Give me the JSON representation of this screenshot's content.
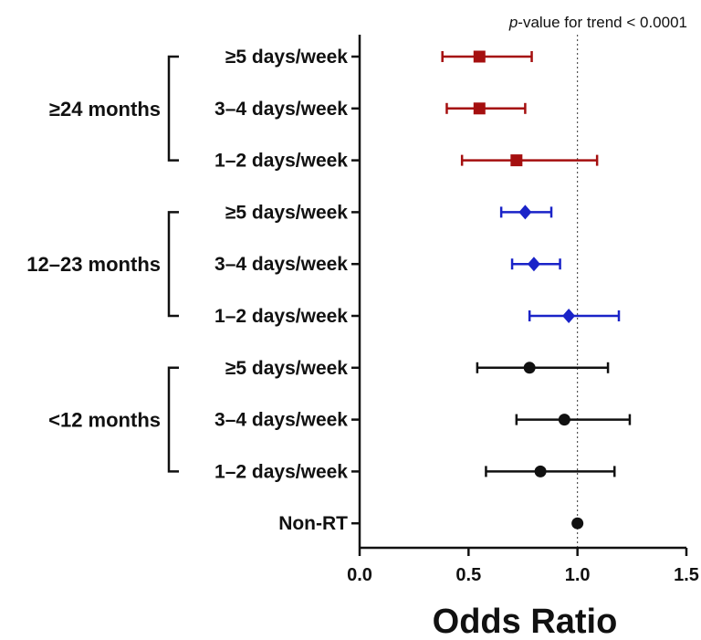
{
  "chart_data": {
    "type": "forest",
    "annotation": {
      "p_label": "p",
      "text": "-value for trend < 0.0001"
    },
    "xlabel": "Odds Ratio",
    "xlim": [
      0,
      1.5
    ],
    "xticks": [
      {
        "value": 0.0,
        "label": "0.0"
      },
      {
        "value": 0.5,
        "label": "0.5"
      },
      {
        "value": 1.0,
        "label": "1.0"
      },
      {
        "value": 1.5,
        "label": "1.5"
      }
    ],
    "reference_line": 1.0,
    "colors": {
      "red": "#a50f0f",
      "blue": "#1a23c8",
      "black": "#111111"
    },
    "groups": [
      {
        "label": "≥24 months",
        "color": "red",
        "marker": "square",
        "rows": [
          0,
          1,
          2
        ]
      },
      {
        "label": "12–23 months",
        "color": "blue",
        "marker": "diamond",
        "rows": [
          3,
          4,
          5
        ]
      },
      {
        "label": "<12 months",
        "color": "black",
        "marker": "circle",
        "rows": [
          6,
          7,
          8
        ]
      }
    ],
    "rows": [
      {
        "label": "≥5 days/week",
        "or": 0.55,
        "lower": 0.38,
        "upper": 0.79,
        "color": "red",
        "marker": "square"
      },
      {
        "label": "3–4 days/week",
        "or": 0.55,
        "lower": 0.4,
        "upper": 0.76,
        "color": "red",
        "marker": "square"
      },
      {
        "label": "1–2 days/week",
        "or": 0.72,
        "lower": 0.47,
        "upper": 1.09,
        "color": "red",
        "marker": "square"
      },
      {
        "label": "≥5 days/week",
        "or": 0.76,
        "lower": 0.65,
        "upper": 0.88,
        "color": "blue",
        "marker": "diamond"
      },
      {
        "label": "3–4 days/week",
        "or": 0.8,
        "lower": 0.7,
        "upper": 0.92,
        "color": "blue",
        "marker": "diamond"
      },
      {
        "label": "1–2 days/week",
        "or": 0.96,
        "lower": 0.78,
        "upper": 1.19,
        "color": "blue",
        "marker": "diamond"
      },
      {
        "label": "≥5 days/week",
        "or": 0.78,
        "lower": 0.54,
        "upper": 1.14,
        "color": "black",
        "marker": "circle"
      },
      {
        "label": "3–4 days/week",
        "or": 0.94,
        "lower": 0.72,
        "upper": 1.24,
        "color": "black",
        "marker": "circle"
      },
      {
        "label": "1–2 days/week",
        "or": 0.83,
        "lower": 0.58,
        "upper": 1.17,
        "color": "black",
        "marker": "circle"
      },
      {
        "label": "Non-RT",
        "or": 1.0,
        "lower": null,
        "upper": null,
        "color": "black",
        "marker": "circle"
      }
    ]
  }
}
